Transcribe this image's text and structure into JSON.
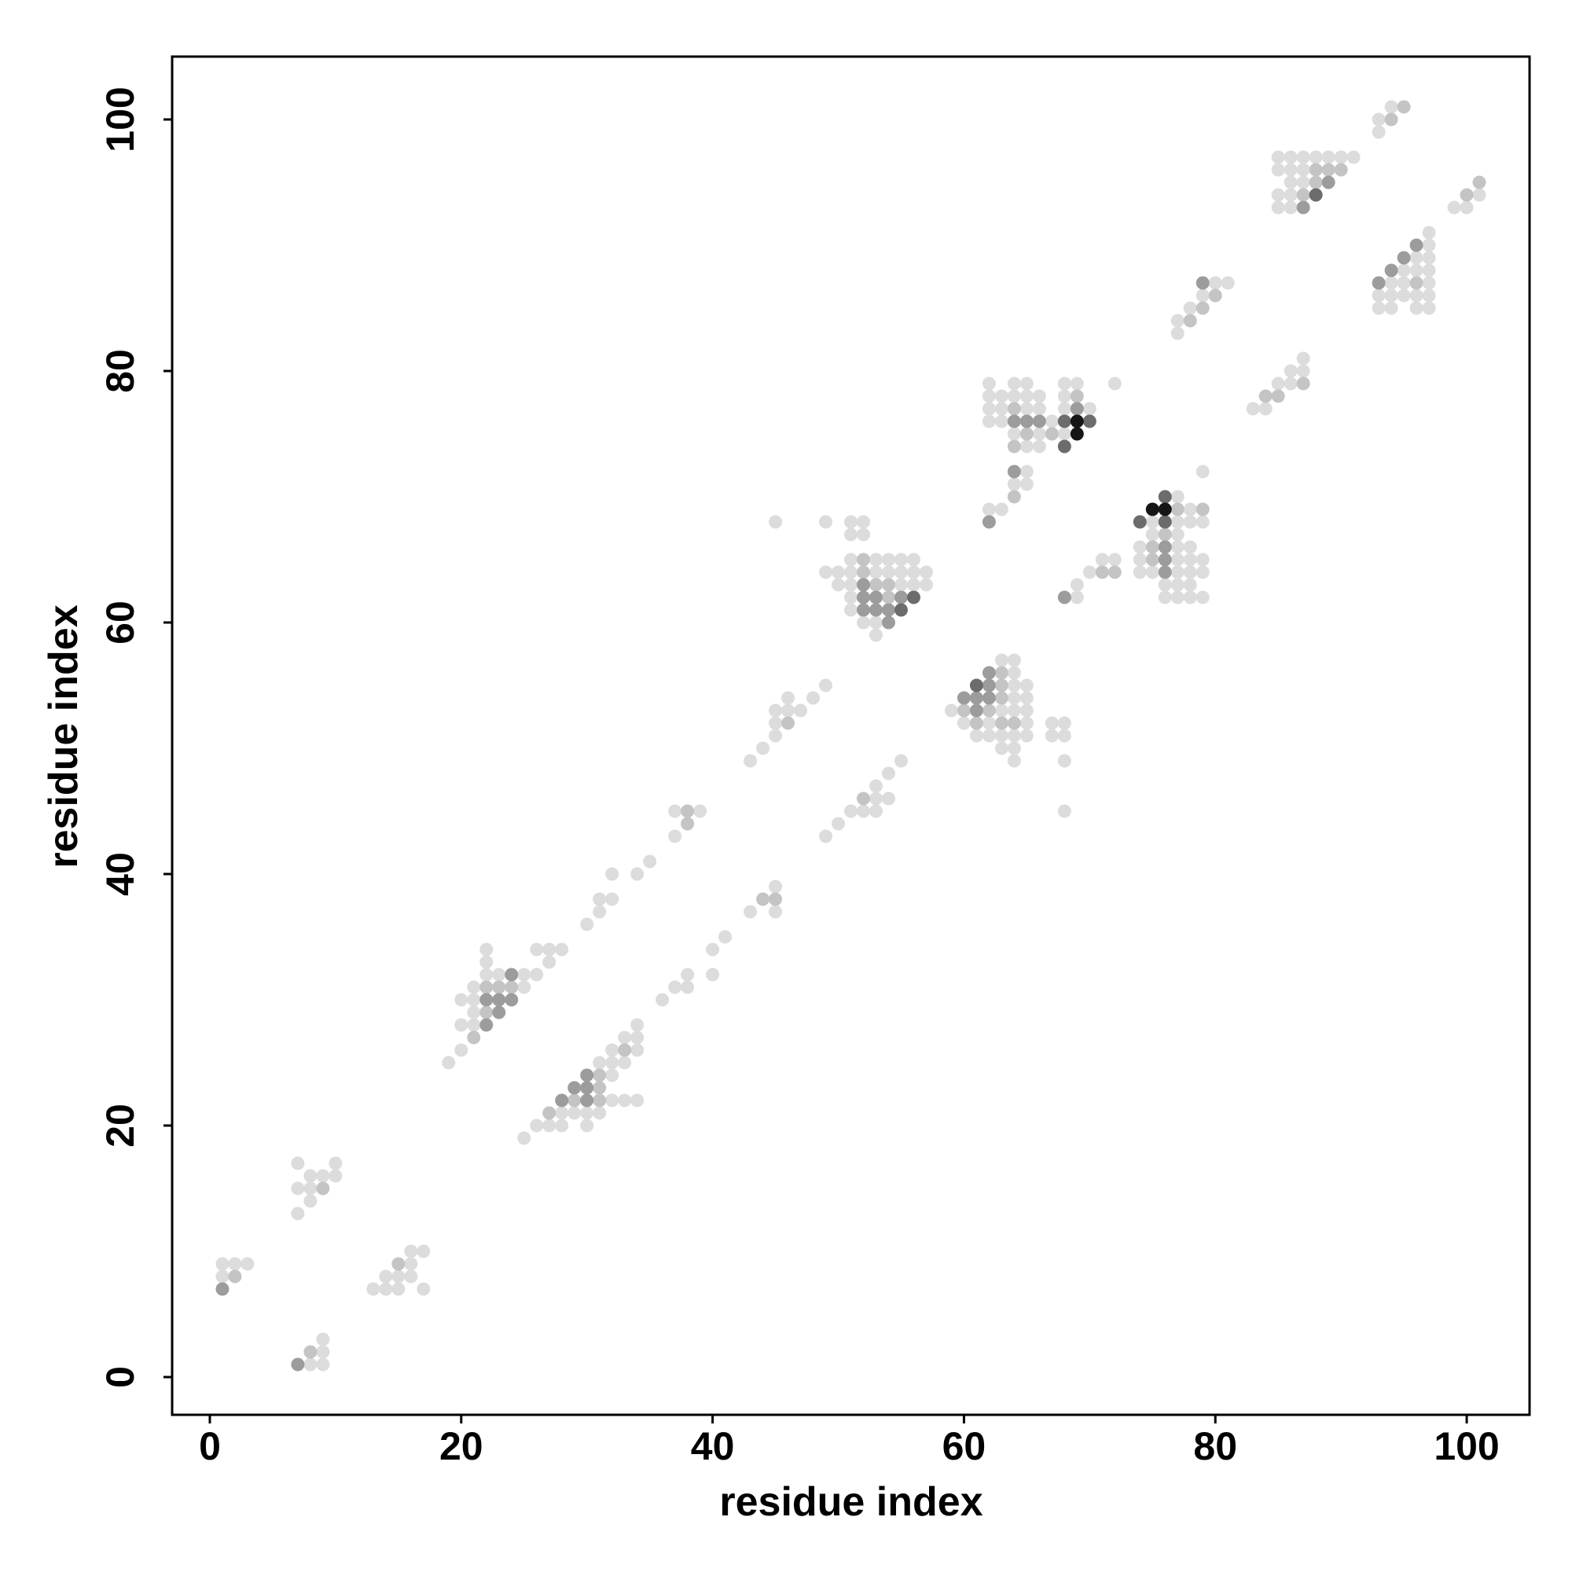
{
  "chart_data": {
    "type": "scatter",
    "x_label": "residue index",
    "y_label": "residue index",
    "xlim": [
      -3,
      105
    ],
    "ylim": [
      -3,
      105
    ],
    "xticks": [
      0,
      20,
      40,
      60,
      80,
      100
    ],
    "yticks": [
      0,
      20,
      40,
      60,
      80,
      100
    ],
    "series": [
      {
        "color": "#dcdcdc",
        "x": [
          1,
          1,
          2,
          3,
          8,
          9,
          9,
          9,
          7,
          7,
          7,
          8,
          8,
          8,
          9,
          10,
          10,
          13,
          14,
          14,
          15,
          15,
          16,
          16,
          16,
          17,
          17,
          19,
          20,
          20,
          20,
          21,
          21,
          21,
          21,
          22,
          22,
          22,
          23,
          25,
          25,
          26,
          26,
          27,
          27,
          28,
          25,
          26,
          27,
          28,
          28,
          29,
          30,
          30,
          31,
          31,
          32,
          32,
          32,
          32,
          33,
          33,
          33,
          34,
          34,
          34,
          34,
          30,
          31,
          31,
          32,
          32,
          34,
          35,
          37,
          37,
          39,
          43,
          44,
          45,
          45,
          45,
          46,
          46,
          47,
          48,
          49,
          45,
          49,
          36,
          37,
          38,
          38,
          40,
          40,
          41,
          43,
          45,
          45,
          49,
          50,
          51,
          52,
          53,
          53,
          53,
          54,
          54,
          55,
          51,
          52,
          51,
          52,
          51,
          53,
          54,
          55,
          56,
          49,
          50,
          51,
          53,
          54,
          55,
          56,
          57,
          50,
          51,
          55,
          56,
          57,
          51,
          51,
          52,
          53,
          53,
          63,
          64,
          64,
          64,
          65,
          64,
          65,
          59,
          63,
          64,
          65,
          60,
          62,
          65,
          67,
          68,
          61,
          62,
          63,
          64,
          65,
          67,
          68,
          63,
          64,
          64,
          68,
          68,
          62,
          64,
          65,
          68,
          69,
          72,
          62,
          63,
          64,
          65,
          66,
          68,
          62,
          63,
          65,
          66,
          68,
          70,
          62,
          63,
          67,
          64,
          66,
          68,
          65,
          66,
          65,
          64,
          65,
          62,
          63,
          79,
          77,
          78,
          75,
          77,
          78,
          79,
          75,
          77,
          74,
          77,
          78,
          74,
          77,
          78,
          79,
          74,
          75,
          77,
          78,
          79,
          76,
          77,
          78,
          76,
          77,
          78,
          79,
          69,
          69,
          70,
          71,
          72,
          77,
          77,
          78,
          79,
          80,
          81,
          83,
          84,
          85,
          86,
          86,
          87,
          87,
          85,
          86,
          87,
          88,
          89,
          90,
          91,
          85,
          86,
          87,
          86,
          87,
          85,
          86,
          85,
          86,
          97,
          97,
          96,
          97,
          95,
          96,
          97,
          94,
          95,
          97,
          93,
          94,
          95,
          96,
          97,
          93,
          94,
          96,
          97,
          93,
          93,
          94,
          99,
          100,
          101
        ],
        "y": [
          8,
          9,
          9,
          9,
          1,
          1,
          2,
          3,
          13,
          15,
          17,
          14,
          15,
          16,
          16,
          16,
          17,
          7,
          7,
          8,
          7,
          8,
          8,
          9,
          10,
          7,
          10,
          25,
          26,
          28,
          30,
          28,
          29,
          30,
          31,
          32,
          33,
          34,
          32,
          31,
          32,
          32,
          34,
          33,
          34,
          34,
          19,
          20,
          20,
          20,
          21,
          21,
          20,
          21,
          21,
          25,
          22,
          24,
          25,
          26,
          22,
          25,
          27,
          22,
          26,
          27,
          28,
          36,
          37,
          38,
          38,
          40,
          40,
          41,
          43,
          45,
          45,
          49,
          50,
          51,
          52,
          53,
          53,
          54,
          53,
          54,
          55,
          68,
          68,
          30,
          31,
          31,
          32,
          32,
          34,
          35,
          37,
          37,
          39,
          43,
          44,
          45,
          45,
          45,
          46,
          47,
          46,
          48,
          49,
          68,
          68,
          67,
          67,
          65,
          65,
          65,
          65,
          65,
          64,
          64,
          64,
          64,
          64,
          64,
          64,
          64,
          63,
          63,
          63,
          63,
          63,
          62,
          61,
          60,
          60,
          59,
          57,
          57,
          56,
          55,
          55,
          54,
          54,
          53,
          53,
          53,
          53,
          52,
          52,
          52,
          52,
          52,
          51,
          51,
          51,
          51,
          51,
          51,
          51,
          50,
          50,
          49,
          49,
          45,
          79,
          79,
          79,
          79,
          79,
          79,
          78,
          78,
          78,
          78,
          78,
          78,
          77,
          77,
          77,
          77,
          77,
          77,
          76,
          76,
          76,
          75,
          75,
          75,
          74,
          74,
          72,
          71,
          71,
          69,
          69,
          72,
          70,
          69,
          68,
          68,
          68,
          68,
          67,
          67,
          66,
          66,
          66,
          65,
          65,
          65,
          65,
          64,
          64,
          64,
          64,
          64,
          63,
          63,
          63,
          62,
          62,
          62,
          62,
          62,
          63,
          64,
          65,
          65,
          83,
          84,
          85,
          86,
          87,
          87,
          77,
          77,
          79,
          79,
          80,
          80,
          81,
          97,
          97,
          97,
          97,
          97,
          97,
          97,
          96,
          96,
          96,
          95,
          95,
          94,
          94,
          93,
          93,
          91,
          90,
          89,
          89,
          88,
          88,
          88,
          87,
          87,
          87,
          86,
          86,
          86,
          86,
          86,
          85,
          85,
          85,
          85,
          99,
          100,
          101,
          93,
          93,
          94
        ]
      },
      {
        "color": "#c4c4c4",
        "x": [
          2,
          8,
          9,
          15,
          21,
          22,
          22,
          23,
          24,
          27,
          29,
          31,
          31,
          31,
          33,
          38,
          38,
          46,
          44,
          45,
          52,
          52,
          52,
          53,
          54,
          54,
          63,
          63,
          63,
          60,
          62,
          61,
          63,
          64,
          69,
          64,
          65,
          67,
          64,
          64,
          77,
          79,
          76,
          75,
          75,
          71,
          72,
          78,
          79,
          80,
          84,
          85,
          87,
          88,
          89,
          90,
          88,
          87,
          96,
          94,
          95,
          100,
          101
        ],
        "y": [
          8,
          2,
          15,
          9,
          27,
          29,
          31,
          31,
          31,
          21,
          22,
          22,
          23,
          24,
          26,
          44,
          45,
          52,
          38,
          38,
          46,
          65,
          64,
          63,
          63,
          62,
          56,
          55,
          54,
          53,
          53,
          52,
          52,
          52,
          78,
          77,
          75,
          75,
          74,
          70,
          69,
          69,
          67,
          66,
          65,
          64,
          64,
          84,
          85,
          86,
          78,
          78,
          79,
          96,
          96,
          96,
          95,
          94,
          87,
          100,
          101,
          94,
          95
        ]
      },
      {
        "color": "#9c9c9c",
        "x": [
          1,
          7,
          22,
          22,
          23,
          23,
          24,
          24,
          28,
          29,
          30,
          30,
          30,
          52,
          52,
          53,
          55,
          52,
          53,
          54,
          54,
          62,
          62,
          60,
          61,
          62,
          61,
          69,
          64,
          65,
          66,
          64,
          62,
          76,
          76,
          76,
          68,
          79,
          89,
          87,
          96,
          95,
          94,
          93
        ],
        "y": [
          7,
          1,
          28,
          30,
          29,
          30,
          30,
          32,
          22,
          23,
          22,
          23,
          24,
          63,
          62,
          62,
          62,
          61,
          61,
          61,
          60,
          56,
          55,
          54,
          54,
          54,
          53,
          77,
          76,
          76,
          76,
          72,
          68,
          66,
          65,
          64,
          62,
          87,
          95,
          93,
          90,
          89,
          88,
          87
        ]
      },
      {
        "color": "#6c6c6c",
        "x": [
          56,
          55,
          61,
          68,
          70,
          68,
          76,
          74,
          76,
          88
        ],
        "y": [
          62,
          61,
          55,
          76,
          76,
          74,
          70,
          68,
          68,
          94
        ]
      },
      {
        "color": "#161616",
        "x": [
          69,
          69,
          75,
          76
        ],
        "y": [
          76,
          75,
          69,
          69
        ]
      }
    ]
  }
}
